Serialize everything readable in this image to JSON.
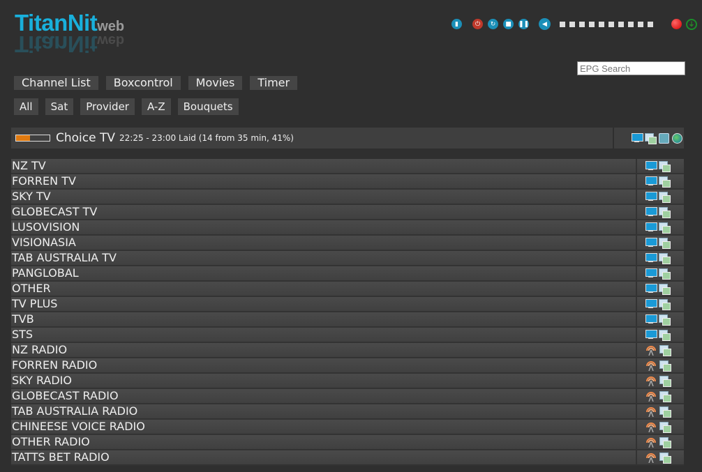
{
  "logo": {
    "main": "TitanNit",
    "suffix": "web"
  },
  "controls": {
    "icons": [
      "remote-icon",
      "power-icon",
      "restart-icon",
      "stop-icon",
      "pause-icon",
      "volume-icon"
    ],
    "volume_steps": 10
  },
  "search": {
    "placeholder": "EPG Search"
  },
  "nav": [
    "Channel List",
    "Boxcontrol",
    "Movies",
    "Timer"
  ],
  "filters": [
    "All",
    "Sat",
    "Provider",
    "A-Z",
    "Bouquets"
  ],
  "now_playing": {
    "channel": "Choice TV",
    "info": "22:25 - 23:00 Laid (14 from 35 min, 41%)",
    "progress_percent": 41,
    "progress_color": "#e07a10"
  },
  "channels": [
    {
      "name": "NZ TV",
      "type": "tv"
    },
    {
      "name": "FORREN TV",
      "type": "tv"
    },
    {
      "name": "SKY TV",
      "type": "tv"
    },
    {
      "name": "GLOBECAST TV",
      "type": "tv"
    },
    {
      "name": "LUSOVISION",
      "type": "tv"
    },
    {
      "name": "VISIONASIA",
      "type": "tv"
    },
    {
      "name": "TAB AUSTRALIA TV",
      "type": "tv"
    },
    {
      "name": "PANGLOBAL",
      "type": "tv"
    },
    {
      "name": "OTHER",
      "type": "tv"
    },
    {
      "name": "TV PLUS",
      "type": "tv"
    },
    {
      "name": "TVB",
      "type": "tv"
    },
    {
      "name": "STS",
      "type": "tv"
    },
    {
      "name": "NZ RADIO",
      "type": "radio"
    },
    {
      "name": "FORREN RADIO",
      "type": "radio"
    },
    {
      "name": "SKY RADIO",
      "type": "radio"
    },
    {
      "name": "GLOBECAST RADIO",
      "type": "radio"
    },
    {
      "name": "TAB AUSTRALIA RADIO",
      "type": "radio"
    },
    {
      "name": "CHINEESE VOICE RADIO",
      "type": "radio"
    },
    {
      "name": "OTHER RADIO",
      "type": "radio"
    },
    {
      "name": "TATTS BET RADIO",
      "type": "radio"
    }
  ]
}
